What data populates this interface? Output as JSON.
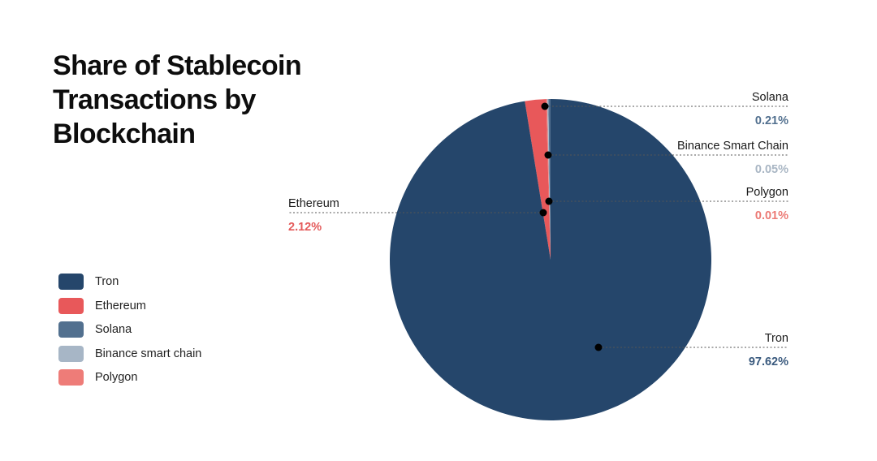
{
  "chart_data": {
    "type": "pie",
    "title": "Share of Stablecoin Transactions by Blockchain",
    "slices": [
      {
        "name": "Tron",
        "value": 97.62,
        "value_label": "97.62%",
        "color": "#25466b",
        "value_color": "#3a5a7e"
      },
      {
        "name": "Ethereum",
        "value": 2.12,
        "value_label": "2.12%",
        "color": "#e8585a",
        "value_color": "#e45a5a"
      },
      {
        "name": "Solana",
        "value": 0.21,
        "value_label": "0.21%",
        "color": "#52708f",
        "value_color": "#52708f"
      },
      {
        "name": "Binance Smart Chain",
        "value": 0.05,
        "value_label": "0.05%",
        "color": "#a7b6c6",
        "value_color": "#a9b6c4"
      },
      {
        "name": "Polygon",
        "value": 0.01,
        "value_label": "0.01%",
        "color": "#ee7c78",
        "value_color": "#ec7a75"
      }
    ],
    "legend": {
      "placement": "left",
      "items": [
        {
          "label": "Tron",
          "color": "#25466b"
        },
        {
          "label": "Ethereum",
          "color": "#e8585a"
        },
        {
          "label": "Solana",
          "color": "#52708f"
        },
        {
          "label": "Binance smart chain",
          "color": "#a7b6c6"
        },
        {
          "label": "Polygon",
          "color": "#ee7c78"
        }
      ]
    }
  }
}
